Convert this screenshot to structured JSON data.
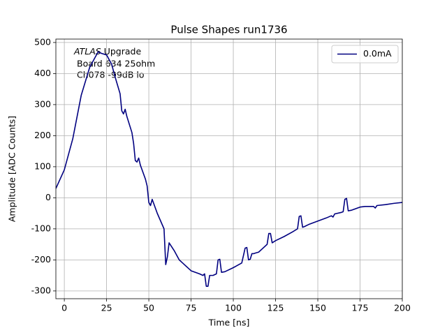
{
  "chart_data": {
    "type": "line",
    "title": "Pulse Shapes run1736",
    "xlabel": "Time [ns]",
    "ylabel": "Amplitude [ADC Counts]",
    "annotations": [
      "ATLAS",
      "Upgrade",
      "Board 634 25ohm",
      "Ch078 -99dB lo"
    ],
    "x": [
      -5,
      0,
      5,
      10,
      15,
      20,
      22,
      25,
      28,
      30,
      33,
      34,
      35,
      36,
      37,
      40,
      41,
      42,
      43,
      44,
      45,
      48,
      49,
      50,
      51,
      52,
      55,
      59,
      60,
      61,
      62,
      65,
      68,
      70,
      75,
      80,
      82,
      83,
      84,
      85,
      86,
      88,
      90,
      91,
      92,
      93,
      95,
      100,
      105,
      107,
      108,
      109,
      110,
      111,
      112,
      113,
      115,
      117,
      120,
      121,
      122,
      123,
      125,
      130,
      135,
      138,
      139,
      140,
      141,
      142,
      145,
      150,
      155,
      158,
      159,
      160,
      164,
      165,
      166,
      167,
      168,
      170,
      175,
      178,
      183,
      184,
      185,
      190,
      195,
      200
    ],
    "series": [
      {
        "name": "0.0mA",
        "color": "#000080",
        "values": [
          30,
          90,
          190,
          330,
          420,
          470,
          465,
          460,
          430,
          390,
          335,
          280,
          270,
          285,
          262,
          210,
          175,
          120,
          115,
          128,
          105,
          60,
          38,
          -15,
          -25,
          -5,
          -50,
          -100,
          -215,
          -190,
          -145,
          -170,
          -200,
          -210,
          -235,
          -245,
          -250,
          -245,
          -285,
          -285,
          -250,
          -250,
          -245,
          -200,
          -198,
          -240,
          -238,
          -225,
          -210,
          -162,
          -160,
          -200,
          -198,
          -180,
          -180,
          -178,
          -175,
          -165,
          -150,
          -115,
          -115,
          -145,
          -138,
          -125,
          -110,
          -100,
          -60,
          -58,
          -95,
          -93,
          -85,
          -75,
          -65,
          -58,
          -62,
          -52,
          -47,
          -45,
          -5,
          -2,
          -42,
          -40,
          -30,
          -28,
          -28,
          -33,
          -25,
          -22,
          -18,
          -15
        ]
      }
    ],
    "xlim": [
      -5,
      200
    ],
    "ylim": [
      -325,
      511
    ],
    "xticks": [
      0,
      25,
      50,
      75,
      100,
      125,
      150,
      175,
      200
    ],
    "yticks": [
      -300,
      -200,
      -100,
      0,
      100,
      200,
      300,
      400,
      500
    ],
    "grid": true,
    "legend": "upper right"
  }
}
